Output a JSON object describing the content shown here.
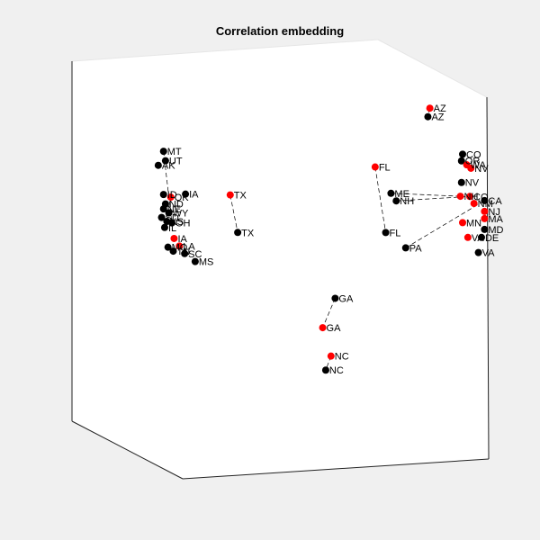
{
  "chart_data": {
    "type": "scatter",
    "title": "Correlation embedding",
    "projection": "3d",
    "grid": false,
    "legend": "none",
    "series": [
      {
        "color": "#000000",
        "marker": "filled-circle"
      },
      {
        "color": "#ff0000",
        "marker": "filled-circle"
      }
    ],
    "link_style": "dashed",
    "points": [
      {
        "label": "AZ",
        "series": 1,
        "x": 0.71,
        "y": 0.56,
        "z": 0.92
      },
      {
        "label": "AZ",
        "series": 0,
        "x": 0.7,
        "y": 0.58,
        "z": 0.9
      },
      {
        "label": "MT",
        "series": 0,
        "x": 0.14,
        "y": 0.3,
        "z": 0.79
      },
      {
        "label": "UT",
        "series": 0,
        "x": 0.15,
        "y": 0.28,
        "z": 0.76
      },
      {
        "label": "AK",
        "series": 0,
        "x": 0.13,
        "y": 0.29,
        "z": 0.75
      },
      {
        "label": "ID",
        "series": 0,
        "x": 0.14,
        "y": 0.3,
        "z": 0.67
      },
      {
        "label": "OK",
        "series": 1,
        "x": 0.16,
        "y": 0.29,
        "z": 0.66
      },
      {
        "label": "IA",
        "series": 0,
        "x": 0.19,
        "y": 0.31,
        "z": 0.67
      },
      {
        "label": "ND",
        "series": 0,
        "x": 0.15,
        "y": 0.28,
        "z": 0.64
      },
      {
        "label": "NE",
        "series": 0,
        "x": 0.14,
        "y": 0.3,
        "z": 0.63
      },
      {
        "label": "WY",
        "series": 0,
        "x": 0.15,
        "y": 0.31,
        "z": 0.62
      },
      {
        "label": "SD",
        "series": 0,
        "x": 0.13,
        "y": 0.32,
        "z": 0.61
      },
      {
        "label": "KS",
        "series": 0,
        "x": 0.14,
        "y": 0.33,
        "z": 0.6
      },
      {
        "label": "OH",
        "series": 0,
        "x": 0.16,
        "y": 0.3,
        "z": 0.59
      },
      {
        "label": "IL",
        "series": 0,
        "x": 0.14,
        "y": 0.31,
        "z": 0.58
      },
      {
        "label": "IA",
        "series": 1,
        "x": 0.16,
        "y": 0.32,
        "z": 0.55
      },
      {
        "label": "MO",
        "series": 0,
        "x": 0.14,
        "y": 0.34,
        "z": 0.53
      },
      {
        "label": "LA",
        "series": 1,
        "x": 0.17,
        "y": 0.33,
        "z": 0.53
      },
      {
        "label": "TN",
        "series": 0,
        "x": 0.15,
        "y": 0.35,
        "z": 0.52
      },
      {
        "label": "SC",
        "series": 0,
        "x": 0.18,
        "y": 0.34,
        "z": 0.51
      },
      {
        "label": "MS",
        "series": 0,
        "x": 0.2,
        "y": 0.36,
        "z": 0.49
      },
      {
        "label": "TX",
        "series": 1,
        "x": 0.3,
        "y": 0.3,
        "z": 0.66
      },
      {
        "label": "TX",
        "series": 0,
        "x": 0.31,
        "y": 0.33,
        "z": 0.56
      },
      {
        "label": "FL",
        "series": 1,
        "x": 0.6,
        "y": 0.48,
        "z": 0.75
      },
      {
        "label": "FL",
        "series": 0,
        "x": 0.62,
        "y": 0.5,
        "z": 0.57
      },
      {
        "label": "ME",
        "series": 0,
        "x": 0.63,
        "y": 0.51,
        "z": 0.68
      },
      {
        "label": "NH",
        "series": 0,
        "x": 0.64,
        "y": 0.52,
        "z": 0.66
      },
      {
        "label": "PA",
        "series": 0,
        "x": 0.66,
        "y": 0.53,
        "z": 0.53
      },
      {
        "label": "CO",
        "series": 0,
        "x": 0.77,
        "y": 0.63,
        "z": 0.8
      },
      {
        "label": "OR",
        "series": 0,
        "x": 0.77,
        "y": 0.62,
        "z": 0.78
      },
      {
        "label": "WA",
        "series": 1,
        "x": 0.78,
        "y": 0.63,
        "z": 0.77
      },
      {
        "label": "NV",
        "series": 1,
        "x": 0.79,
        "y": 0.63,
        "z": 0.76
      },
      {
        "label": "NV",
        "series": 0,
        "x": 0.77,
        "y": 0.62,
        "z": 0.72
      },
      {
        "label": "NH",
        "series": 1,
        "x": 0.77,
        "y": 0.61,
        "z": 0.68
      },
      {
        "label": "CO",
        "series": 1,
        "x": 0.79,
        "y": 0.62,
        "z": 0.68
      },
      {
        "label": "CA",
        "series": 0,
        "x": 0.82,
        "y": 0.64,
        "z": 0.67
      },
      {
        "label": "NM",
        "series": 1,
        "x": 0.8,
        "y": 0.62,
        "z": 0.66
      },
      {
        "label": "NJ",
        "series": 1,
        "x": 0.82,
        "y": 0.64,
        "z": 0.64
      },
      {
        "label": "MA",
        "series": 1,
        "x": 0.82,
        "y": 0.64,
        "z": 0.62
      },
      {
        "label": "MN",
        "series": 1,
        "x": 0.77,
        "y": 0.63,
        "z": 0.61
      },
      {
        "label": "MD",
        "series": 0,
        "x": 0.82,
        "y": 0.64,
        "z": 0.59
      },
      {
        "label": "VA",
        "series": 1,
        "x": 0.78,
        "y": 0.64,
        "z": 0.57
      },
      {
        "label": "DE",
        "series": 0,
        "x": 0.81,
        "y": 0.65,
        "z": 0.57
      },
      {
        "label": "VA",
        "series": 0,
        "x": 0.8,
        "y": 0.66,
        "z": 0.53
      },
      {
        "label": "GA",
        "series": 0,
        "x": 0.52,
        "y": 0.42,
        "z": 0.38
      },
      {
        "label": "GA",
        "series": 1,
        "x": 0.49,
        "y": 0.42,
        "z": 0.3
      },
      {
        "label": "NC",
        "series": 1,
        "x": 0.51,
        "y": 0.42,
        "z": 0.22
      },
      {
        "label": "NC",
        "series": 0,
        "x": 0.5,
        "y": 0.41,
        "z": 0.18
      }
    ],
    "links": [
      [
        0,
        1
      ],
      [
        21,
        22
      ],
      [
        23,
        24
      ],
      [
        44,
        45
      ],
      [
        46,
        47
      ],
      [
        2,
        13
      ],
      [
        25,
        33
      ],
      [
        26,
        34
      ],
      [
        27,
        35
      ]
    ]
  }
}
